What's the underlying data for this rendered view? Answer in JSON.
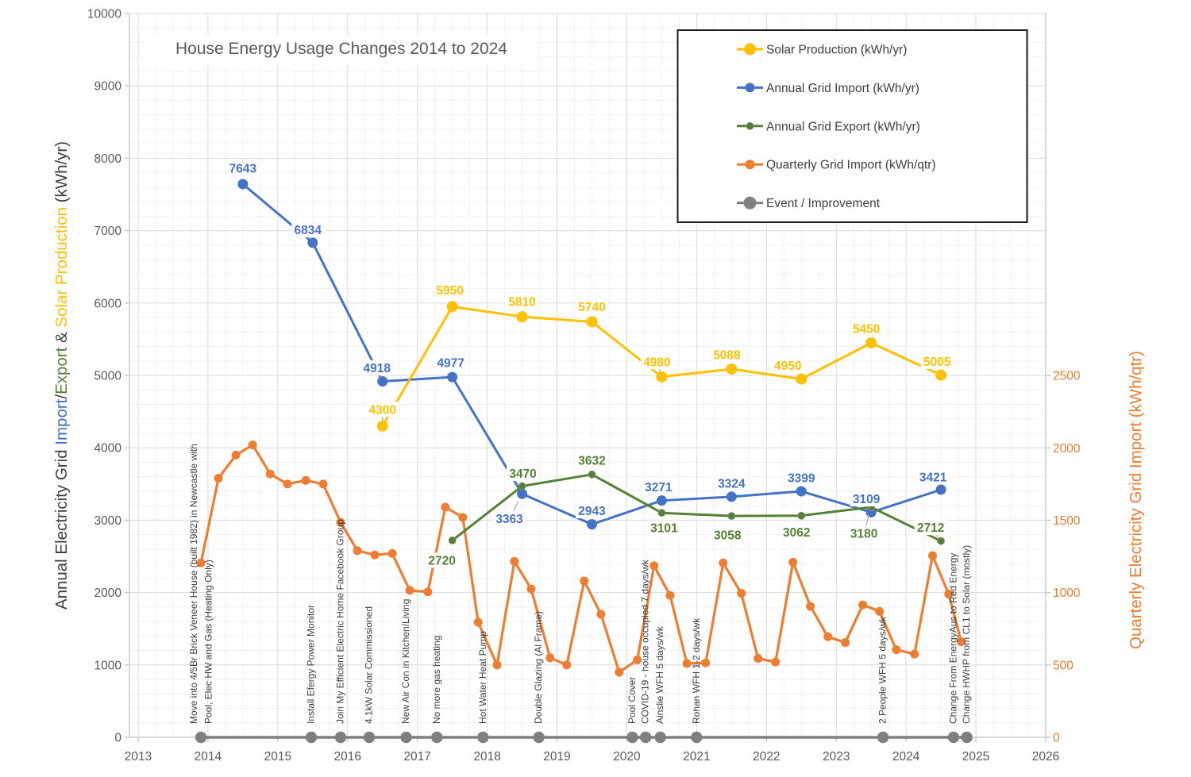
{
  "title": "House Energy Usage Changes 2014 to 2024",
  "colors": {
    "solar": "#FFC000",
    "grid_import": "#4472C4",
    "grid_export": "#548235",
    "quarterly_import": "#ED7D31",
    "event": "#7F7F7F",
    "title_text": "#595959",
    "axis_text": "#595959",
    "event_text": "#3F3F3F",
    "gridline_major": "#D9D9D9",
    "gridline_minor": "#F2F2F2",
    "axis_line": "#BFBFBF",
    "leader": "#A6A6A6",
    "legend_text": "#404040",
    "legend_border": "#1A1A1A"
  },
  "left_axis": {
    "min": 0,
    "max": 10000,
    "major_step": 1000,
    "minor_step": 200,
    "title_parts": [
      {
        "text": "Annual Electricity Grid ",
        "color": "#3F3F3F"
      },
      {
        "text": "Import",
        "color": "#4472C4"
      },
      {
        "text": "/",
        "color": "#3F3F3F"
      },
      {
        "text": "Export",
        "color": "#548235"
      },
      {
        "text": " & ",
        "color": "#3F3F3F"
      },
      {
        "text": "Solar Production",
        "color": "#FFC000"
      },
      {
        "text": " (kWh/yr)",
        "color": "#3F3F3F"
      }
    ]
  },
  "right_axis": {
    "title": "Quarterly Electricity Grid Import (kWh/qtr)",
    "min": 0,
    "max": 5000,
    "label_max": 2500,
    "major_step": 500
  },
  "x_axis": {
    "start": 2013,
    "end": 2026,
    "minor_step": 0.25,
    "tick_labels": [
      "2013",
      "2014",
      "2015",
      "2016",
      "2017",
      "2018",
      "2019",
      "2020",
      "2021",
      "2022",
      "2023",
      "2024",
      "2025",
      "2026"
    ]
  },
  "legend": {
    "items": [
      {
        "key": "solar",
        "label": "Solar Production (kWh/yr)"
      },
      {
        "key": "grid_import",
        "label": "Annual Grid Import (kWh/yr)"
      },
      {
        "key": "grid_export",
        "label": "Annual Grid Export (kWh/yr)"
      },
      {
        "key": "quarterly_import",
        "label": "Quarterly Grid Import (kWh/qtr)"
      },
      {
        "key": "event",
        "label": "Event / Improvement"
      }
    ]
  },
  "chart_data": {
    "type": "line",
    "x_range": [
      2013,
      2026
    ],
    "left_axis_range": [
      0,
      10000
    ],
    "right_axis_range": [
      0,
      5000
    ],
    "grid": true,
    "legend_position": "top-right",
    "series": [
      {
        "key": "solar",
        "name": "Solar Production (kWh/yr)",
        "axis": "left",
        "marker_r": 7,
        "line_w": 3,
        "draw_order": 4,
        "points": [
          {
            "x": 2016.5,
            "v": 4300,
            "dx": 0,
            "dy": -21,
            "leader": true
          },
          {
            "x": 2017.5,
            "v": 5950,
            "dx": -3,
            "dy": -21
          },
          {
            "x": 2018.5,
            "v": 5810,
            "dx": 0,
            "dy": -19
          },
          {
            "x": 2019.5,
            "v": 5740,
            "dx": 0,
            "dy": -19
          },
          {
            "x": 2020.5,
            "v": 4980,
            "dx": -6,
            "dy": -19,
            "leader": true
          },
          {
            "x": 2021.5,
            "v": 5088,
            "dx": -6,
            "dy": -18
          },
          {
            "x": 2022.5,
            "v": 4950,
            "dx": -17,
            "dy": -17
          },
          {
            "x": 2023.5,
            "v": 5450,
            "dx": -6,
            "dy": -18
          },
          {
            "x": 2024.5,
            "v": 5005,
            "dx": -5,
            "dy": -17
          }
        ]
      },
      {
        "key": "grid_import",
        "name": "Annual Grid Import (kWh/yr)",
        "axis": "left",
        "marker_r": 6.5,
        "line_w": 3,
        "draw_order": 2,
        "points": [
          {
            "x": 2014.5,
            "v": 7643,
            "dx": 0,
            "dy": -20
          },
          {
            "x": 2015.5,
            "v": 6834,
            "dx": -6,
            "dy": -16,
            "leader": true
          },
          {
            "x": 2016.5,
            "v": 4918,
            "dx": -7,
            "dy": -17,
            "leader": true
          },
          {
            "x": 2017.5,
            "v": 4977,
            "dx": -2,
            "dy": -18
          },
          {
            "x": 2018.5,
            "v": 3363,
            "dx": -16,
            "dy": 31,
            "leader": true
          },
          {
            "x": 2019.5,
            "v": 2943,
            "dx": 0,
            "dy": -17
          },
          {
            "x": 2020.5,
            "v": 3271,
            "dx": -4,
            "dy": -17
          },
          {
            "x": 2021.5,
            "v": 3324,
            "dx": 0,
            "dy": -17
          },
          {
            "x": 2022.5,
            "v": 3399,
            "dx": 0,
            "dy": -17
          },
          {
            "x": 2023.5,
            "v": 3109,
            "dx": -6,
            "dy": -17,
            "leader": true
          },
          {
            "x": 2024.5,
            "v": 3421,
            "dx": -10,
            "dy": -16
          }
        ]
      },
      {
        "key": "grid_export",
        "name": "Annual Grid Export (kWh/yr)",
        "axis": "left",
        "marker_r": 4.5,
        "line_w": 3,
        "draw_order": 3,
        "points": [
          {
            "x": 2017.5,
            "v": 2720,
            "dx": -13,
            "dy": 25
          },
          {
            "x": 2018.5,
            "v": 3470,
            "dx": 1,
            "dy": -16
          },
          {
            "x": 2019.5,
            "v": 3632,
            "dx": 0,
            "dy": -18
          },
          {
            "x": 2020.5,
            "v": 3101,
            "dx": 3,
            "dy": 19
          },
          {
            "x": 2021.5,
            "v": 3058,
            "dx": -5,
            "dy": 24
          },
          {
            "x": 2022.5,
            "v": 3062,
            "dx": -6,
            "dy": 21
          },
          {
            "x": 2023.5,
            "v": 3180,
            "dx": -9,
            "dy": 33,
            "leader": true
          },
          {
            "x": 2024.5,
            "v": 2712,
            "dx": -13,
            "dy": -17,
            "leader": true
          }
        ]
      },
      {
        "key": "quarterly_import",
        "name": "Quarterly Grid Import (kWh/qtr)",
        "axis": "right",
        "marker_r": 5.5,
        "line_w": 3.2,
        "draw_order": 1,
        "points": [
          {
            "x": 2013.9,
            "v": 1205
          },
          {
            "x": 2014.15,
            "v": 1790
          },
          {
            "x": 2014.4,
            "v": 1950
          },
          {
            "x": 2014.64,
            "v": 2020
          },
          {
            "x": 2014.89,
            "v": 1820
          },
          {
            "x": 2015.14,
            "v": 1750
          },
          {
            "x": 2015.4,
            "v": 1775
          },
          {
            "x": 2015.65,
            "v": 1750
          },
          {
            "x": 2015.9,
            "v": 1485
          },
          {
            "x": 2016.14,
            "v": 1290
          },
          {
            "x": 2016.39,
            "v": 1260
          },
          {
            "x": 2016.64,
            "v": 1270
          },
          {
            "x": 2016.89,
            "v": 1015
          },
          {
            "x": 2017.15,
            "v": 1005
          },
          {
            "x": 2017.4,
            "v": 1590
          },
          {
            "x": 2017.65,
            "v": 1520
          },
          {
            "x": 2017.87,
            "v": 795
          },
          {
            "x": 2018.14,
            "v": 500
          },
          {
            "x": 2018.39,
            "v": 1215
          },
          {
            "x": 2018.63,
            "v": 1025
          },
          {
            "x": 2018.9,
            "v": 550
          },
          {
            "x": 2019.14,
            "v": 500
          },
          {
            "x": 2019.39,
            "v": 1080
          },
          {
            "x": 2019.63,
            "v": 850
          },
          {
            "x": 2019.89,
            "v": 450
          },
          {
            "x": 2020.15,
            "v": 535
          },
          {
            "x": 2020.39,
            "v": 1185
          },
          {
            "x": 2020.62,
            "v": 980
          },
          {
            "x": 2020.86,
            "v": 510
          },
          {
            "x": 2021.13,
            "v": 515
          },
          {
            "x": 2021.38,
            "v": 1205
          },
          {
            "x": 2021.64,
            "v": 995
          },
          {
            "x": 2021.88,
            "v": 545
          },
          {
            "x": 2022.13,
            "v": 520
          },
          {
            "x": 2022.38,
            "v": 1210
          },
          {
            "x": 2022.63,
            "v": 905
          },
          {
            "x": 2022.88,
            "v": 695
          },
          {
            "x": 2023.13,
            "v": 655
          },
          {
            "x": 2023.38,
            "v": 915
          },
          {
            "x": 2023.62,
            "v": 870
          },
          {
            "x": 2023.86,
            "v": 605
          },
          {
            "x": 2024.12,
            "v": 575
          },
          {
            "x": 2024.38,
            "v": 1255
          },
          {
            "x": 2024.61,
            "v": 990
          },
          {
            "x": 2024.79,
            "v": 660
          }
        ]
      }
    ]
  },
  "events": [
    {
      "x": 2013.9,
      "label": "Move into 4/5Br Brick Veneer House (built 1982) in Newcastle with",
      "label2": "Pool, Elec HW and Gas (Heating Only)"
    },
    {
      "x": 2015.48,
      "label": "Install Efergy Power Monitor"
    },
    {
      "x": 2015.9,
      "label": "Join My Efficient Electric Home Facebook Group"
    },
    {
      "x": 2016.31,
      "label": "4.1kW Solar Commissioned"
    },
    {
      "x": 2016.84,
      "label": "New Air Con in Kitchen/Living"
    },
    {
      "x": 2017.28,
      "label": "No more gas heating"
    },
    {
      "x": 2017.94,
      "label": "Hot Water Heat Pump"
    },
    {
      "x": 2018.74,
      "label": "Double Glazing (Al Frame)"
    },
    {
      "x": 2020.08,
      "label": "Pool Cover"
    },
    {
      "x": 2020.27,
      "label": "COVID-19 - house occupied 7 days/wk"
    },
    {
      "x": 2020.48,
      "label": "Ainslie WFH 5 days/wk"
    },
    {
      "x": 2021.0,
      "label": "Rohan WFH 1-2 days/wk"
    },
    {
      "x": 2023.67,
      "label": "2 People WFH 5 days/wk"
    },
    {
      "x": 2024.68,
      "label": "Change From EnergyAus to Red Energy"
    },
    {
      "x": 2024.87,
      "label": "Change HWHP from CL1 to Solar (mostly)"
    }
  ]
}
